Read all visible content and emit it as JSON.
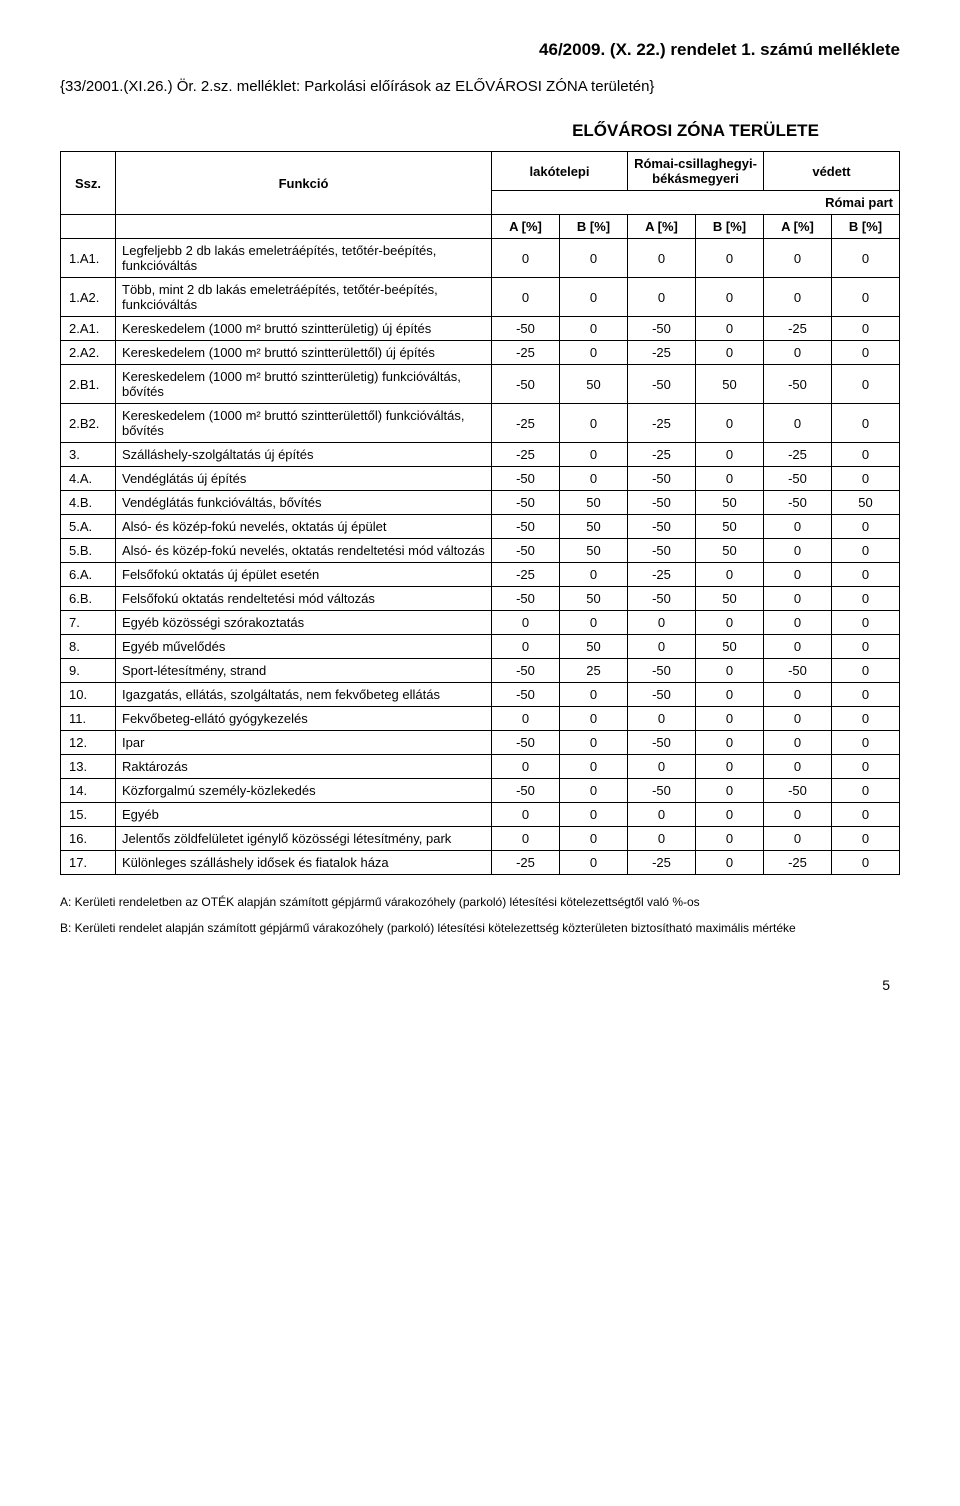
{
  "header": {
    "title_right": "46/2009. (X. 22.) rendelet 1. számú melléklete",
    "subtitle": "{33/2001.(XI.26.) Ör. 2.sz. melléklet: Parkolási előírások az ELŐVÁROSI ZÓNA területén}",
    "zone_title": "ELŐVÁROSI ZÓNA TERÜLETE"
  },
  "table": {
    "head": {
      "ssz": "Ssz.",
      "func": "Funkció",
      "group1": "lakótelepi",
      "group2": "Római-csillaghegyi-békásmegyeri",
      "group3": "védett",
      "right_label": "Római part",
      "a_pct": "A [%]",
      "b_pct": "B [%]"
    },
    "rows": [
      {
        "ssz": "1.A1.",
        "func": "Legfeljebb 2 db lakás emeletráépítés, tetőtér-beépítés, funkcióváltás",
        "v": [
          "0",
          "0",
          "0",
          "0",
          "0",
          "0"
        ]
      },
      {
        "ssz": "1.A2.",
        "func": "Több, mint 2 db lakás emeletráépítés, tetőtér-beépítés, funkcióváltás",
        "v": [
          "0",
          "0",
          "0",
          "0",
          "0",
          "0"
        ]
      },
      {
        "ssz": "2.A1.",
        "func": "Kereskedelem (1000 m² bruttó szintterületig) új építés",
        "v": [
          "-50",
          "0",
          "-50",
          "0",
          "-25",
          "0"
        ]
      },
      {
        "ssz": "2.A2.",
        "func": "Kereskedelem (1000 m² bruttó szintterülettől) új építés",
        "v": [
          "-25",
          "0",
          "-25",
          "0",
          "0",
          "0"
        ]
      },
      {
        "ssz": "2.B1.",
        "func": "Kereskedelem (1000 m² bruttó szintterületig) funkcióváltás, bővítés",
        "v": [
          "-50",
          "50",
          "-50",
          "50",
          "-50",
          "0"
        ]
      },
      {
        "ssz": "2.B2.",
        "func": "Kereskedelem (1000 m² bruttó szintterülettől) funkcióváltás, bővítés",
        "v": [
          "-25",
          "0",
          "-25",
          "0",
          "0",
          "0"
        ]
      },
      {
        "ssz": "3.",
        "func": "Szálláshely-szolgáltatás új építés",
        "v": [
          "-25",
          "0",
          "-25",
          "0",
          "-25",
          "0"
        ]
      },
      {
        "ssz": "4.A.",
        "func": "Vendéglátás új építés",
        "v": [
          "-50",
          "0",
          "-50",
          "0",
          "-50",
          "0"
        ]
      },
      {
        "ssz": "4.B.",
        "func": "Vendéglátás funkcióváltás, bővítés",
        "v": [
          "-50",
          "50",
          "-50",
          "50",
          "-50",
          "50"
        ]
      },
      {
        "ssz": "5.A.",
        "func": "Alsó- és közép-fokú nevelés, oktatás új épület",
        "v": [
          "-50",
          "50",
          "-50",
          "50",
          "0",
          "0"
        ]
      },
      {
        "ssz": "5.B.",
        "func": "Alsó- és közép-fokú nevelés, oktatás rendeltetési mód változás",
        "v": [
          "-50",
          "50",
          "-50",
          "50",
          "0",
          "0"
        ]
      },
      {
        "ssz": "6.A.",
        "func": "Felsőfokú oktatás új épület esetén",
        "v": [
          "-25",
          "0",
          "-25",
          "0",
          "0",
          "0"
        ]
      },
      {
        "ssz": "6.B.",
        "func": "Felsőfokú oktatás rendeltetési mód változás",
        "v": [
          "-50",
          "50",
          "-50",
          "50",
          "0",
          "0"
        ]
      },
      {
        "ssz": "7.",
        "func": "Egyéb közösségi szórakoztatás",
        "v": [
          "0",
          "0",
          "0",
          "0",
          "0",
          "0"
        ]
      },
      {
        "ssz": "8.",
        "func": "Egyéb művelődés",
        "v": [
          "0",
          "50",
          "0",
          "50",
          "0",
          "0"
        ]
      },
      {
        "ssz": "9.",
        "func": "Sport-létesítmény, strand",
        "v": [
          "-50",
          "25",
          "-50",
          "0",
          "-50",
          "0"
        ]
      },
      {
        "ssz": "10.",
        "func": "Igazgatás, ellátás, szolgáltatás, nem fekvőbeteg ellátás",
        "v": [
          "-50",
          "0",
          "-50",
          "0",
          "0",
          "0"
        ]
      },
      {
        "ssz": "11.",
        "func": "Fekvőbeteg-ellátó gyógykezelés",
        "v": [
          "0",
          "0",
          "0",
          "0",
          "0",
          "0"
        ]
      },
      {
        "ssz": "12.",
        "func": "Ipar",
        "v": [
          "-50",
          "0",
          "-50",
          "0",
          "0",
          "0"
        ]
      },
      {
        "ssz": "13.",
        "func": "Raktározás",
        "v": [
          "0",
          "0",
          "0",
          "0",
          "0",
          "0"
        ]
      },
      {
        "ssz": "14.",
        "func": "Közforgalmú személy-közlekedés",
        "v": [
          "-50",
          "0",
          "-50",
          "0",
          "-50",
          "0"
        ]
      },
      {
        "ssz": "15.",
        "func": "Egyéb",
        "v": [
          "0",
          "0",
          "0",
          "0",
          "0",
          "0"
        ]
      },
      {
        "ssz": "16.",
        "func": "Jelentős zöldfelületet igénylő közösségi létesítmény, park",
        "v": [
          "0",
          "0",
          "0",
          "0",
          "0",
          "0"
        ]
      },
      {
        "ssz": "17.",
        "func": "Különleges szálláshely idősek és fiatalok háza",
        "v": [
          "-25",
          "0",
          "-25",
          "0",
          "-25",
          "0"
        ]
      }
    ]
  },
  "footnotes": {
    "a": "A: Kerületi rendeletben az OTÉK alapján számított gépjármű várakozóhely (parkoló) létesítési kötelezettségtől való %-os",
    "b": "B: Kerületi rendelet alapján számított gépjármű várakozóhely (parkoló) létesítési kötelezettség közterületen biztosítható maximális mértéke"
  },
  "pagenum": "5"
}
